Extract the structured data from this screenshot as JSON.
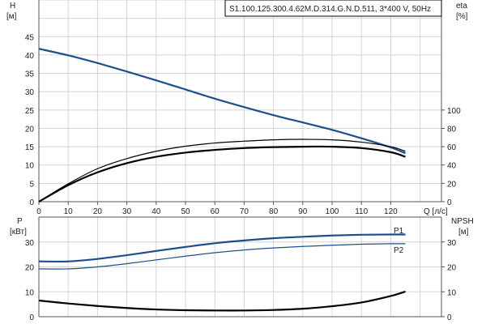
{
  "chart_data": [
    {
      "type": "line",
      "title": "S1.100.125.300.4.62M.D.314.G.N.D.511, 3*400 V, 50Hz",
      "xlabel": "Q [л/с]",
      "ylabel": "H",
      "ylabel_unit": "[м]",
      "y2label": "eta",
      "y2label_unit": "[%]",
      "xlim": [
        0,
        135
      ],
      "ylim": [
        0,
        55
      ],
      "y2lim": [
        0,
        220
      ],
      "x_ticks": [
        0,
        10,
        20,
        30,
        40,
        50,
        60,
        70,
        80,
        90,
        100,
        110,
        120
      ],
      "y_ticks": [
        0,
        5,
        10,
        15,
        20,
        25,
        30,
        35,
        40,
        45
      ],
      "y2_ticks": [
        0,
        20,
        40,
        60,
        80,
        100
      ],
      "grid": true,
      "x": [
        0,
        10,
        20,
        30,
        40,
        50,
        60,
        70,
        80,
        90,
        100,
        110,
        120,
        125
      ],
      "series": [
        {
          "axis": "left",
          "color": "#1f4e8c",
          "values": [
            41.7,
            39.9,
            37.8,
            35.5,
            33.1,
            30.6,
            28.1,
            25.8,
            23.6,
            21.6,
            19.6,
            17.3,
            14.8,
            13.2
          ]
        },
        {
          "axis": "right",
          "color": "#000000",
          "values": [
            0,
            19.5,
            36,
            47,
            55,
            60.5,
            64,
            66,
            67.5,
            68,
            67.5,
            65,
            60,
            55
          ]
        },
        {
          "axis": "right",
          "color": "#000000",
          "values": [
            0,
            18,
            32,
            42,
            49,
            53.5,
            56.5,
            58.5,
            59.5,
            60,
            60,
            58.5,
            54,
            49
          ]
        }
      ]
    },
    {
      "type": "line",
      "xlim": [
        0,
        135
      ],
      "ylabel": "P",
      "ylabel_unit": "[кВт]",
      "y2label": "NPSH",
      "y2label_unit": "[м]",
      "ylim": [
        0,
        40
      ],
      "y_ticks": [
        0,
        10,
        20,
        30
      ],
      "y2_ticks": [
        0,
        10,
        20,
        30
      ],
      "grid": true,
      "x": [
        0,
        10,
        20,
        30,
        40,
        50,
        60,
        70,
        80,
        90,
        100,
        110,
        120,
        125
      ],
      "series": [
        {
          "name": "P1",
          "axis": "left",
          "color": "#1f4e8c",
          "values": [
            22.2,
            22.2,
            23.2,
            24.7,
            26.4,
            28,
            29.5,
            30.6,
            31.5,
            32.1,
            32.6,
            32.9,
            33,
            33
          ]
        },
        {
          "name": "P2",
          "axis": "left",
          "color": "#1f4e8c",
          "values": [
            19.2,
            19.2,
            20,
            21.3,
            22.8,
            24.3,
            25.7,
            26.8,
            27.6,
            28.2,
            28.7,
            29.1,
            29.3,
            29.3
          ]
        },
        {
          "axis": "right",
          "color": "#000000",
          "values": [
            6.5,
            5.3,
            4.3,
            3.5,
            2.9,
            2.6,
            2.5,
            2.5,
            2.7,
            3.2,
            4.2,
            5.7,
            8.3,
            10.1
          ]
        }
      ]
    }
  ]
}
